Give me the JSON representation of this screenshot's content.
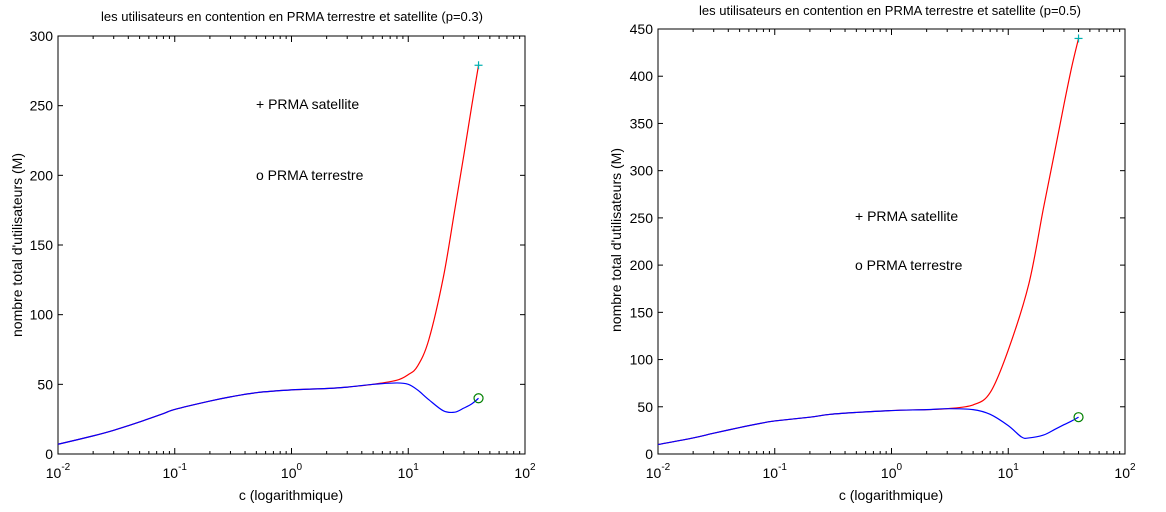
{
  "chart_data": [
    {
      "type": "line",
      "title": "les utilisateurs en contention en PRMA terrestre et satellite (p=0.3)",
      "xlabel": "c (logarithmique)",
      "ylabel": "nombre total d'utilisateurs (M)",
      "xscale": "log",
      "xlim": [
        0.01,
        100
      ],
      "ylim": [
        0,
        300
      ],
      "yticks": [
        0,
        50,
        100,
        150,
        200,
        250,
        300
      ],
      "xtick_exponents": [
        "-2",
        "-1",
        "0",
        "1",
        "2"
      ],
      "legend_text": [
        "+ PRMA satellite",
        "o PRMA terrestre"
      ],
      "legend_position": "upper-center",
      "grid": false,
      "series": [
        {
          "name": "PRMA satellite",
          "color": "#ff0000",
          "marker": "+",
          "marker_color": "#00b0b0",
          "x": [
            0.01,
            0.02,
            0.03,
            0.05,
            0.08,
            0.1,
            0.2,
            0.3,
            0.5,
            1,
            2,
            3,
            5,
            8,
            10,
            12,
            15,
            20,
            25,
            30,
            35,
            40
          ],
          "y": [
            7,
            13,
            17,
            23,
            29,
            32,
            38,
            41,
            44,
            46,
            47,
            48,
            50,
            53,
            57,
            63,
            82,
            127,
            175,
            215,
            250,
            279
          ]
        },
        {
          "name": "PRMA terrestre",
          "color": "#0000ff",
          "marker": "o",
          "marker_color": "#008000",
          "x": [
            0.01,
            0.02,
            0.03,
            0.05,
            0.08,
            0.1,
            0.2,
            0.3,
            0.5,
            1,
            2,
            3,
            5,
            8,
            10,
            12,
            15,
            20,
            25,
            30,
            35,
            40
          ],
          "y": [
            7,
            13,
            17,
            23,
            29,
            32,
            38,
            41,
            44,
            46,
            47,
            48,
            50,
            51,
            50,
            46,
            39,
            31,
            30,
            33,
            36,
            40
          ]
        }
      ]
    },
    {
      "type": "line",
      "title": "les utilisateurs en contention en PRMA terrestre et satellite (p=0.5)",
      "xlabel": "c (logarithmique)",
      "ylabel": "nombre total d'utilisateurs (M)",
      "xscale": "log",
      "xlim": [
        0.01,
        100
      ],
      "ylim": [
        0,
        450
      ],
      "yticks": [
        0,
        50,
        100,
        150,
        200,
        250,
        300,
        350,
        400,
        450
      ],
      "xtick_exponents": [
        "-2",
        "-1",
        "0",
        "1",
        "2"
      ],
      "legend_text": [
        "+ PRMA satellite",
        "o PRMA terrestre"
      ],
      "legend_position": "center",
      "grid": false,
      "series": [
        {
          "name": "PRMA satellite",
          "color": "#ff0000",
          "marker": "+",
          "marker_color": "#00b0b0",
          "x": [
            0.01,
            0.02,
            0.03,
            0.05,
            0.08,
            0.1,
            0.2,
            0.3,
            0.5,
            1,
            2,
            3,
            5,
            7,
            10,
            15,
            20,
            25,
            30,
            35,
            40
          ],
          "y": [
            10,
            17,
            22,
            28,
            33,
            35,
            39,
            42,
            44,
            46,
            47,
            48,
            52,
            65,
            110,
            180,
            260,
            320,
            370,
            410,
            440
          ]
        },
        {
          "name": "PRMA terrestre",
          "color": "#0000ff",
          "marker": "o",
          "marker_color": "#008000",
          "x": [
            0.01,
            0.02,
            0.03,
            0.05,
            0.08,
            0.1,
            0.2,
            0.3,
            0.5,
            1,
            2,
            3,
            5,
            7,
            10,
            13,
            15,
            20,
            25,
            30,
            35,
            40
          ],
          "y": [
            10,
            17,
            22,
            28,
            33,
            35,
            39,
            42,
            44,
            46,
            47,
            48,
            47,
            42,
            30,
            18,
            17,
            20,
            26,
            31,
            35,
            39
          ]
        }
      ]
    }
  ]
}
